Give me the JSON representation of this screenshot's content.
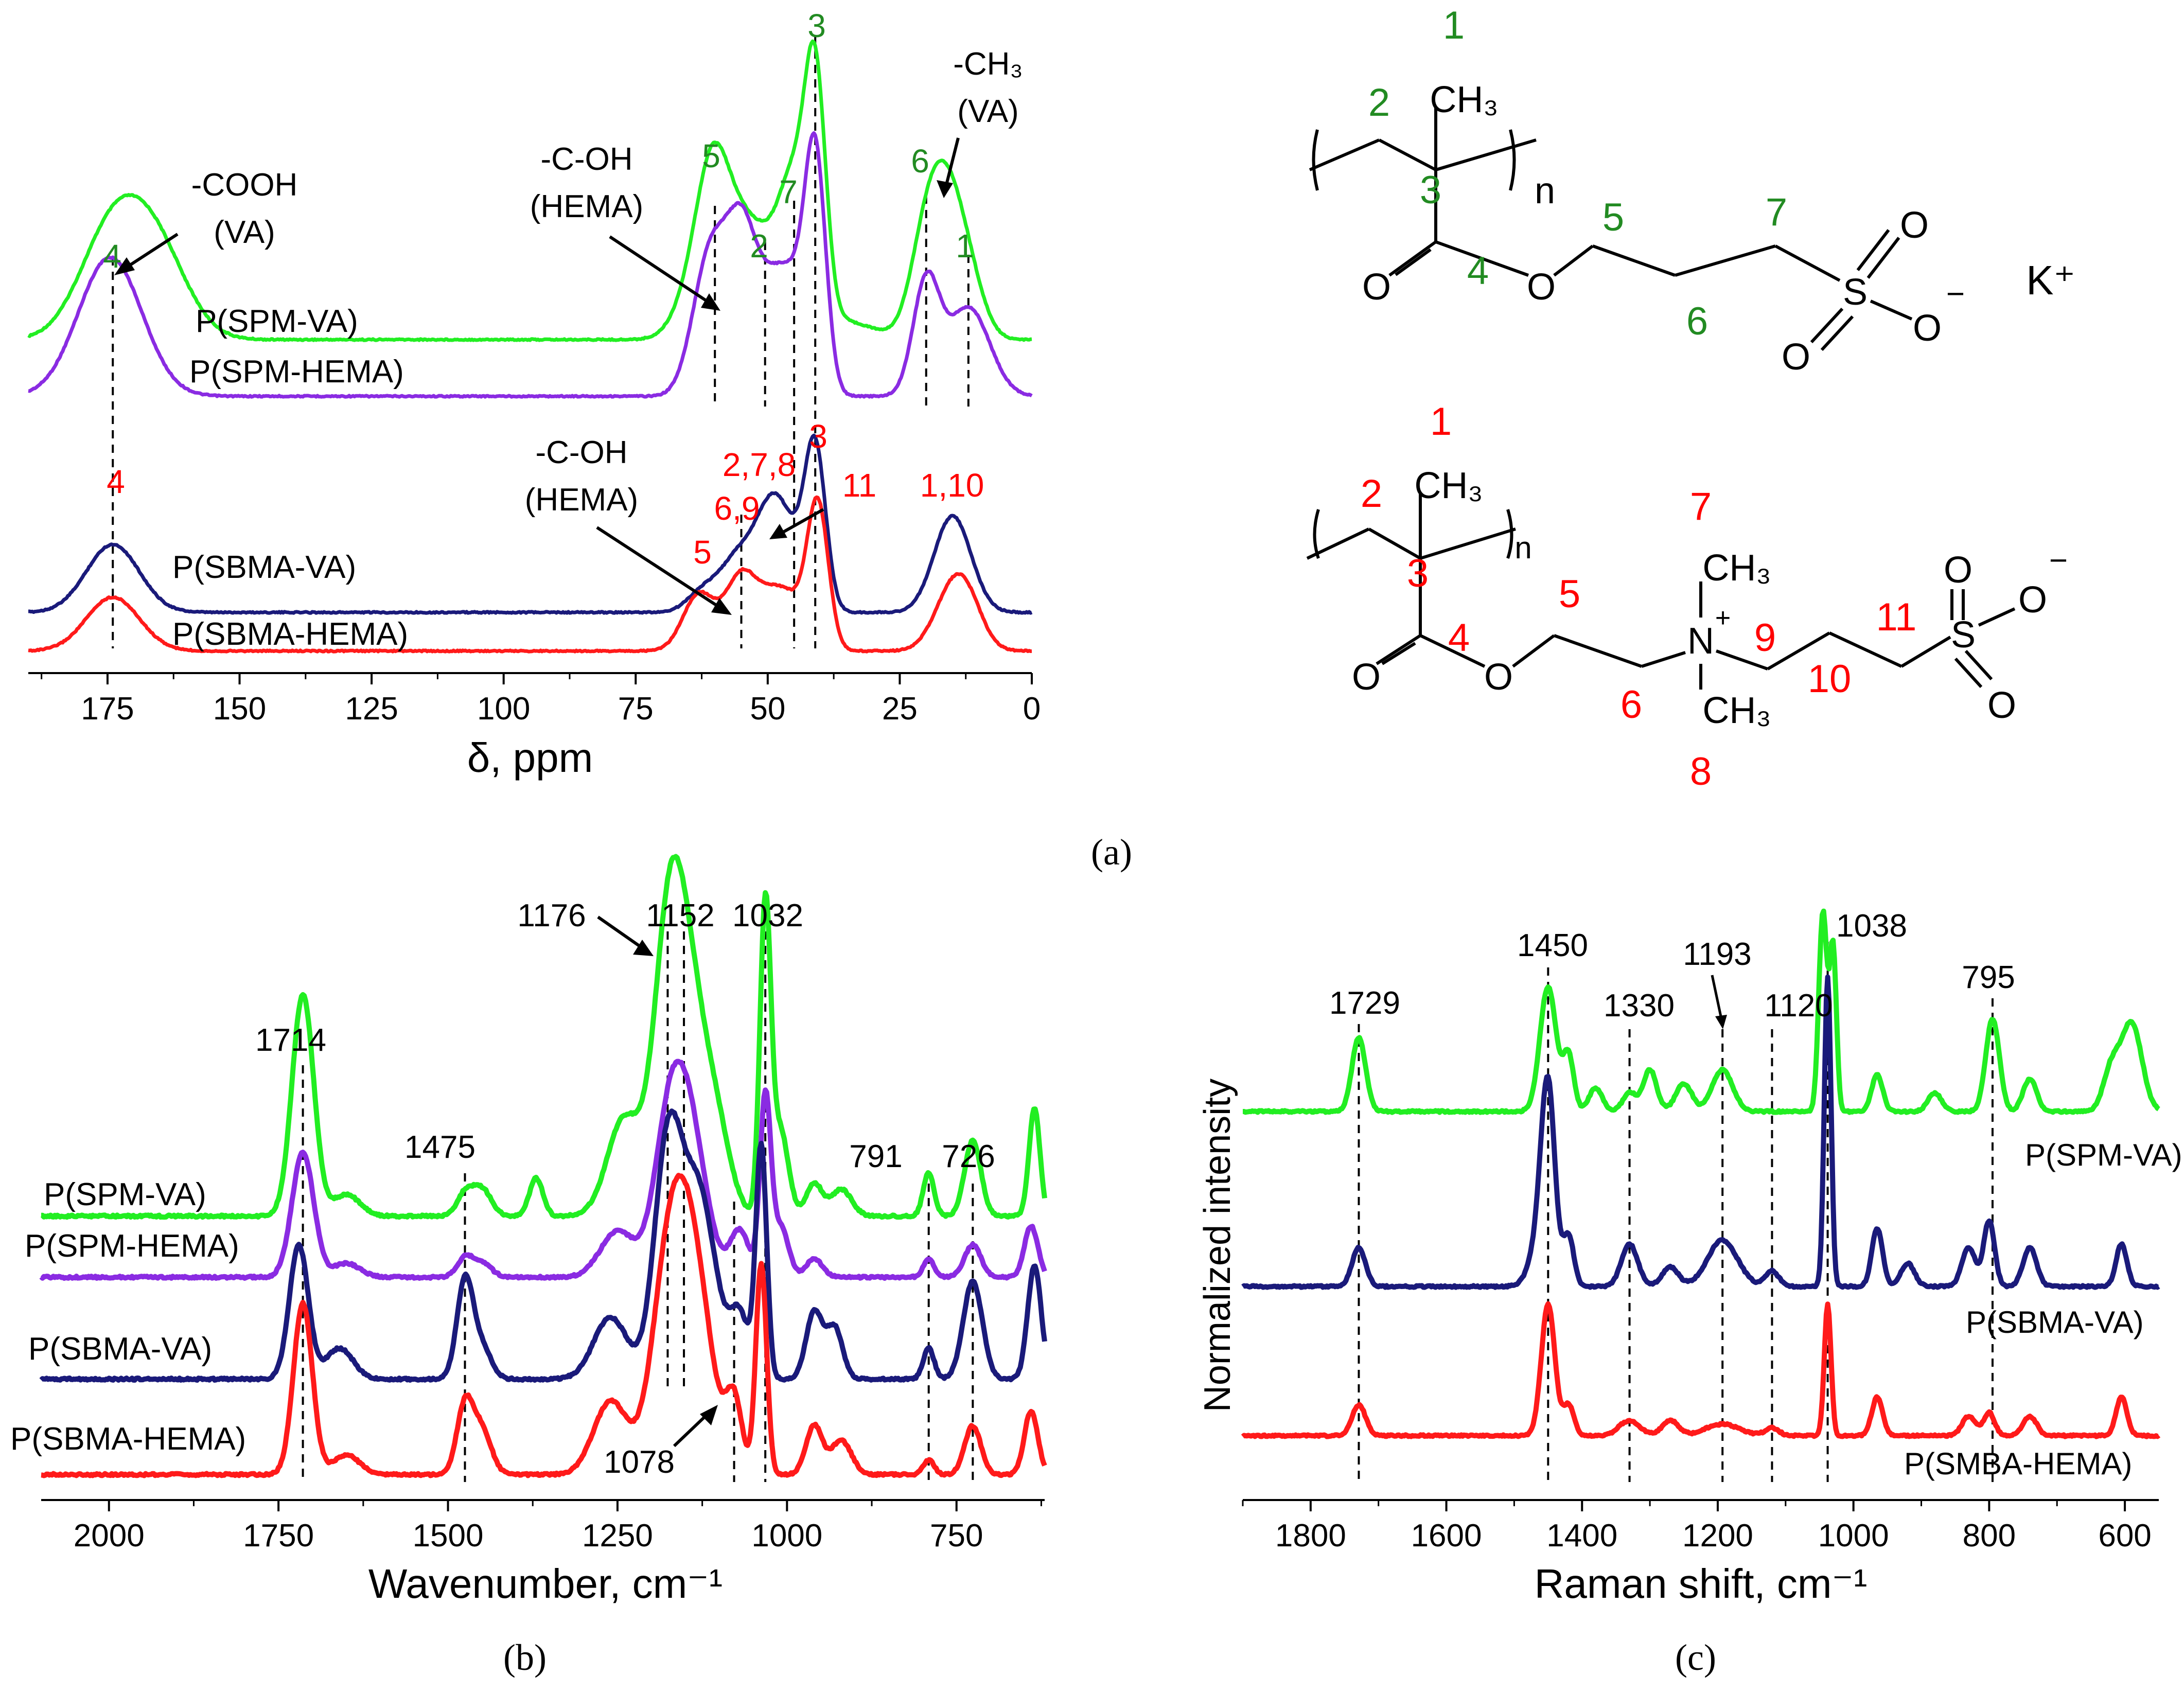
{
  "colors": {
    "green": "#22ee22",
    "purple": "#8a2be2",
    "navy": "#1a1a7a",
    "red": "#ff1a1a",
    "dark_green": "#228b22",
    "label_red": "#ff0000",
    "black": "#000000"
  },
  "captions": {
    "a": "(a)",
    "b": "(b)",
    "c": "(c)"
  },
  "chart_data": [
    {
      "id": "nmr",
      "type": "line",
      "title": "",
      "xlabel": "δ, ppm",
      "ylabel": "",
      "xlim": [
        190,
        0
      ],
      "xticks": [
        175,
        150,
        125,
        100,
        75,
        50,
        25,
        0
      ],
      "series": [
        {
          "name": "P(SPM-VA)",
          "color": "green",
          "baseline": 0,
          "peaks": [
            [
              174.5,
              6,
              3.2
            ],
            [
              166,
              6,
              2.8
            ],
            [
              62,
              4,
              2.6
            ],
            [
              60,
              3,
              3.5
            ],
            [
              55,
              3,
              1.8
            ],
            [
              51,
              4,
              1.6
            ],
            [
              48,
              4,
              1.6
            ],
            [
              45,
              2.5,
              3.2
            ],
            [
              41,
              2,
              7.8
            ],
            [
              36,
              6,
              0.6
            ],
            [
              20,
              3,
              3.2
            ],
            [
              16,
              3,
              3.6
            ],
            [
              12,
              3,
              1.8
            ]
          ]
        },
        {
          "name": "P(SPM-HEMA)",
          "color": "purple",
          "baseline": 0,
          "peaks": [
            [
              174.5,
              6,
              3.6
            ],
            [
              62,
              3,
              2.2
            ],
            [
              59,
              3,
              2.2
            ],
            [
              55,
              2.5,
              2.6
            ],
            [
              51,
              4,
              1.6
            ],
            [
              48,
              4,
              1.6
            ],
            [
              45,
              2.5,
              1.2
            ],
            [
              41,
              2,
              6
            ],
            [
              20,
              2.5,
              2.9
            ],
            [
              12,
              4,
              2.3
            ]
          ]
        },
        {
          "name": "P(SBMA-VA)",
          "color": "navy",
          "baseline": 0,
          "peaks": [
            [
              174,
              5,
              2.4
            ],
            [
              62,
              3,
              0.8
            ],
            [
              56,
              3,
              1.6
            ],
            [
              52,
              3,
              0.8
            ],
            [
              49,
              3,
              3.0
            ],
            [
              45,
              3,
              1.5
            ],
            [
              41,
              2,
              5.5
            ],
            [
              15,
              3.5,
              3.4
            ]
          ]
        },
        {
          "name": "P(SBMA-HEMA)",
          "color": "red",
          "baseline": 0,
          "peaks": [
            [
              174,
              5,
              1.9
            ],
            [
              63,
              3,
              2.0
            ],
            [
              55,
              3,
              2.6
            ],
            [
              49,
              3,
              1.5
            ],
            [
              45,
              3,
              1.2
            ],
            [
              40.5,
              2,
              5.0
            ],
            [
              15,
              3.5,
              2.0
            ],
            [
              12,
              3,
              1.0
            ]
          ]
        }
      ],
      "series_labels": [
        "P(SPM-VA)",
        "P(SPM-HEMA)",
        "P(SBMA-VA)",
        "P(SBMA-HEMA)"
      ],
      "annotations": {
        "cooh_1": "-COOH",
        "cooh_2": "(VA)",
        "coh_top_1": "-C-OH",
        "coh_top_2": "(HEMA)",
        "ch3_1": "-CH₃",
        "ch3_2": "(VA)",
        "coh_bot_1": "-C-OH",
        "coh_bot_2": "(HEMA)"
      },
      "green_peak_numbers": {
        "p4": "4",
        "p5": "5",
        "p2": "2",
        "p7": "7",
        "p3": "3",
        "p6": "6",
        "p1": "1"
      },
      "red_peak_numbers": {
        "p4": "4",
        "p5": "5",
        "p69": "6,9",
        "p278": "2,7,8",
        "p3": "3",
        "p11": "11",
        "p110": "1,10"
      }
    },
    {
      "id": "ir",
      "type": "line",
      "title": "",
      "xlabel": "Wavenumber, cm⁻¹",
      "ylabel": "",
      "xlim": [
        2100,
        620
      ],
      "xticks": [
        2000,
        1750,
        1500,
        1250,
        1000,
        750
      ],
      "series": [
        {
          "name": "P(SPM-VA)",
          "color": "green",
          "baseline": 0.35,
          "peaks": [
            [
              1714,
              16,
              4.1
            ],
            [
              1650,
              20,
              0.4
            ],
            [
              1475,
              12,
              0.4
            ],
            [
              1450,
              14,
              0.5
            ],
            [
              1370,
              10,
              0.7
            ],
            [
              1240,
              25,
              1.8
            ],
            [
              1176,
              22,
              4.0
            ],
            [
              1145,
              28,
              4.0
            ],
            [
              1100,
              20,
              1.0
            ],
            [
              1032,
              8,
              5.7
            ],
            [
              1010,
              12,
              1.6
            ],
            [
              960,
              12,
              0.6
            ],
            [
              920,
              15,
              0.5
            ],
            [
              791,
              8,
              0.8
            ],
            [
              726,
              12,
              1.4
            ],
            [
              635,
              8,
              2.0
            ]
          ]
        },
        {
          "name": "P(SPM-HEMA)",
          "color": "purple",
          "baseline": 0.2,
          "peaks": [
            [
              1714,
              16,
              2.7
            ],
            [
              1650,
              20,
              0.3
            ],
            [
              1475,
              12,
              0.4
            ],
            [
              1450,
              14,
              0.3
            ],
            [
              1250,
              25,
              1.0
            ],
            [
              1176,
              22,
              2.6
            ],
            [
              1145,
              25,
              3.2
            ],
            [
              1070,
              14,
              1.0
            ],
            [
              1032,
              8,
              3.8
            ],
            [
              1010,
              12,
              1.1
            ],
            [
              960,
              12,
              0.4
            ],
            [
              791,
              8,
              0.4
            ],
            [
              726,
              12,
              0.7
            ],
            [
              640,
              10,
              1.1
            ]
          ]
        },
        {
          "name": "P(SBMA-VA)",
          "color": "navy",
          "baseline": 0.2,
          "peaks": [
            [
              1720,
              14,
              2.6
            ],
            [
              1660,
              20,
              0.6
            ],
            [
              1475,
              12,
              1.9
            ],
            [
              1450,
              14,
              0.6
            ],
            [
              1260,
              25,
              1.2
            ],
            [
              1176,
              20,
              4.4
            ],
            [
              1130,
              25,
              3.6
            ],
            [
              1070,
              14,
              1.2
            ],
            [
              1038,
              8,
              4.5
            ],
            [
              960,
              12,
              1.3
            ],
            [
              930,
              12,
              1.0
            ],
            [
              791,
              8,
              0.6
            ],
            [
              726,
              14,
              1.9
            ],
            [
              635,
              10,
              2.2
            ]
          ]
        },
        {
          "name": "P(SBMA-HEMA)",
          "color": "red",
          "baseline": 0.1,
          "peaks": [
            [
              1714,
              14,
              3.5
            ],
            [
              1650,
              20,
              0.4
            ],
            [
              1475,
              12,
              1.4
            ],
            [
              1450,
              14,
              0.9
            ],
            [
              1260,
              25,
              1.5
            ],
            [
              1176,
              25,
              3.5
            ],
            [
              1140,
              28,
              4.2
            ],
            [
              1078,
              12,
              1.4
            ],
            [
              1038,
              8,
              4.3
            ],
            [
              960,
              12,
              1.0
            ],
            [
              920,
              15,
              0.7
            ],
            [
              791,
              8,
              0.3
            ],
            [
              726,
              12,
              1.0
            ],
            [
              640,
              10,
              1.3
            ]
          ]
        }
      ],
      "series_labels": [
        "P(SPM-VA)",
        "P(SPM-HEMA)",
        "P(SBMA-VA)",
        "P(SBMA-HEMA)"
      ],
      "peak_labels": [
        "1714",
        "1475",
        "1176",
        "1152",
        "1032",
        "791",
        "726",
        "1078"
      ]
    },
    {
      "id": "raman",
      "type": "line",
      "title": "",
      "xlabel": "Raman shift, cm⁻¹",
      "ylabel": "Normalized intensity",
      "xlim": [
        1900,
        550
      ],
      "xticks": [
        1800,
        1600,
        1400,
        1200,
        1000,
        800,
        600
      ],
      "series": [
        {
          "name": "P(SPM-VA)",
          "color": "green",
          "baseline": 0,
          "peaks": [
            [
              1729,
              10,
              1.6
            ],
            [
              1450,
              12,
              2.7
            ],
            [
              1420,
              8,
              1.2
            ],
            [
              1380,
              10,
              0.5
            ],
            [
              1330,
              10,
              0.4
            ],
            [
              1300,
              10,
              0.9
            ],
            [
              1250,
              12,
              0.6
            ],
            [
              1193,
              15,
              0.9
            ],
            [
              1045,
              6,
              4.3
            ],
            [
              1030,
              5,
              3.5
            ],
            [
              965,
              8,
              0.8
            ],
            [
              880,
              10,
              0.4
            ],
            [
              795,
              10,
              2.0
            ],
            [
              740,
              10,
              0.7
            ],
            [
              620,
              12,
              0.9
            ],
            [
              590,
              15,
              1.9
            ]
          ]
        },
        {
          "name": "P(SBMA-VA)",
          "color": "navy",
          "baseline": 0,
          "peaks": [
            [
              1729,
              10,
              1.0
            ],
            [
              1460,
              15,
              1.3
            ],
            [
              1450,
              10,
              4.4
            ],
            [
              1420,
              8,
              1.3
            ],
            [
              1330,
              12,
              1.1
            ],
            [
              1270,
              12,
              0.5
            ],
            [
              1193,
              22,
              1.2
            ],
            [
              1120,
              10,
              0.4
            ],
            [
              1038,
              5,
              8.0
            ],
            [
              965,
              8,
              1.5
            ],
            [
              920,
              10,
              0.6
            ],
            [
              830,
              10,
              1.0
            ],
            [
              800,
              8,
              1.7
            ],
            [
              740,
              10,
              1.0
            ],
            [
              605,
              8,
              1.1
            ]
          ]
        },
        {
          "name": "P(SMBA-HEMA)",
          "color": "red",
          "baseline": 0,
          "peaks": [
            [
              1729,
              10,
              0.8
            ],
            [
              1450,
              10,
              3.4
            ],
            [
              1420,
              8,
              0.8
            ],
            [
              1330,
              15,
              0.4
            ],
            [
              1270,
              12,
              0.4
            ],
            [
              1193,
              25,
              0.3
            ],
            [
              1120,
              10,
              0.2
            ],
            [
              1038,
              5,
              3.4
            ],
            [
              965,
              8,
              1.0
            ],
            [
              830,
              10,
              0.5
            ],
            [
              800,
              8,
              0.6
            ],
            [
              740,
              10,
              0.5
            ],
            [
              605,
              8,
              1.0
            ]
          ]
        }
      ],
      "series_labels": [
        "P(SPM-VA)",
        "P(SBMA-VA)",
        "P(SMBA-HEMA)"
      ],
      "peak_labels": [
        "1729",
        "1450",
        "1330",
        "1193",
        "1120",
        "1038",
        "795"
      ]
    }
  ],
  "structure_spm": {
    "num_1": "1",
    "num_2": "2",
    "num_3": "3",
    "num_4": "4",
    "num_5": "5",
    "num_6": "6",
    "num_7": "7",
    "ch3": "CH₃",
    "n": "n",
    "o_carbonyl": "O",
    "o_ester": "O",
    "s": "S",
    "o_s1": "O",
    "o_s2": "O",
    "o_s3": "O",
    "minus": "−",
    "cation": "K⁺"
  },
  "structure_sbma": {
    "num_1": "1",
    "num_2": "2",
    "num_3": "3",
    "num_4": "4",
    "num_5": "5",
    "num_6": "6",
    "num_7": "7",
    "num_8": "8",
    "num_9": "9",
    "num_10": "10",
    "num_11": "11",
    "ch3": "CH₃",
    "n": "n",
    "o_carbonyl": "O",
    "o_ester": "O",
    "nitrogen": "N",
    "plus": "+",
    "ch3_up": "CH₃",
    "ch3_down": "CH₃",
    "s": "S",
    "o_s1": "O",
    "o_s2": "O",
    "o_s3": "O",
    "minus": "−"
  }
}
